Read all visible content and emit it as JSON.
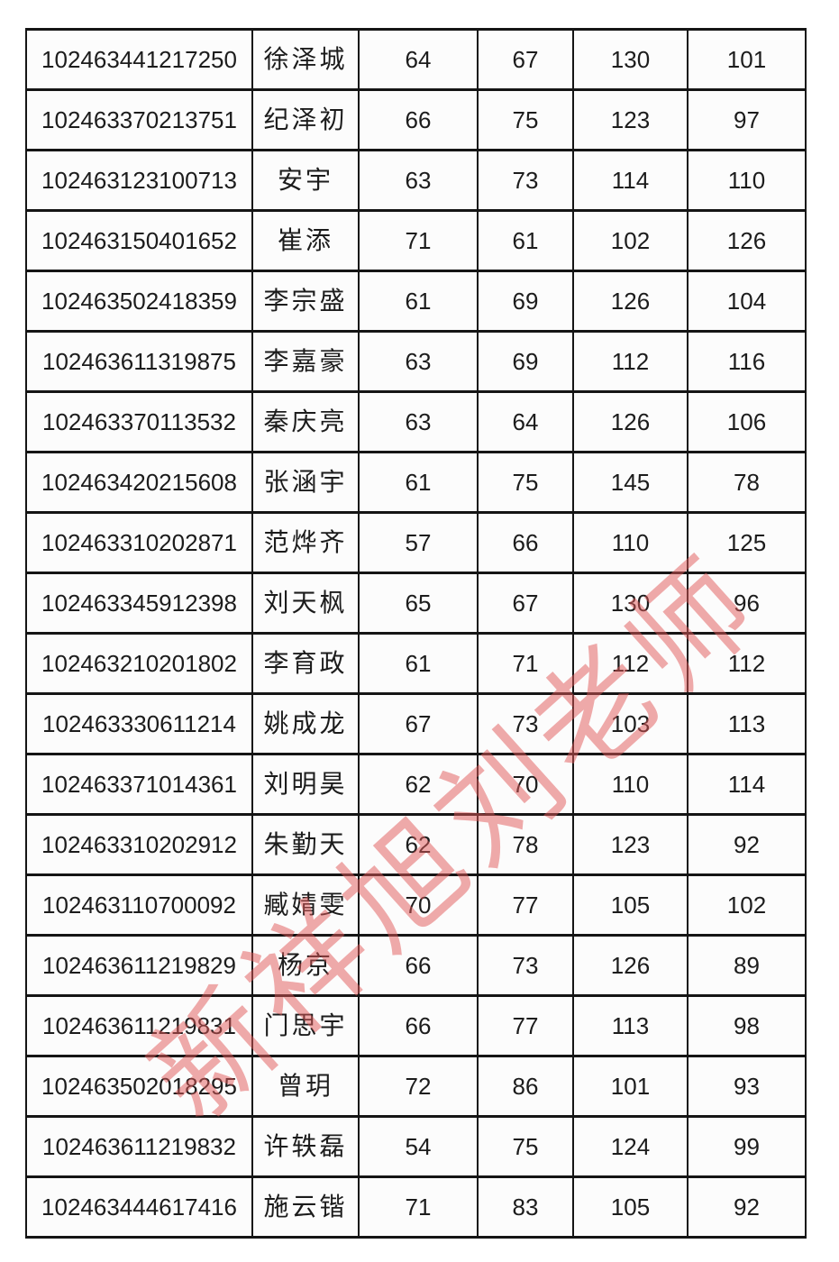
{
  "page": {
    "background": "#ffffff",
    "border_color": "#151515",
    "text_color": "#1c1c1c"
  },
  "watermark": {
    "text": "新祥旭刘老师",
    "color": "#e25959"
  },
  "table": {
    "rows": [
      [
        "102463441217250",
        "徐泽城",
        "64",
        "67",
        "130",
        "101"
      ],
      [
        "102463370213751",
        "纪泽初",
        "66",
        "75",
        "123",
        "97"
      ],
      [
        "102463123100713",
        "安宇",
        "63",
        "73",
        "114",
        "110"
      ],
      [
        "102463150401652",
        "崔添",
        "71",
        "61",
        "102",
        "126"
      ],
      [
        "102463502418359",
        "李宗盛",
        "61",
        "69",
        "126",
        "104"
      ],
      [
        "102463611319875",
        "李嘉豪",
        "63",
        "69",
        "112",
        "116"
      ],
      [
        "102463370113532",
        "秦庆亮",
        "63",
        "64",
        "126",
        "106"
      ],
      [
        "102463420215608",
        "张涵宇",
        "61",
        "75",
        "145",
        "78"
      ],
      [
        "102463310202871",
        "范烨齐",
        "57",
        "66",
        "110",
        "125"
      ],
      [
        "102463345912398",
        "刘天枫",
        "65",
        "67",
        "130",
        "96"
      ],
      [
        "102463210201802",
        "李育政",
        "61",
        "71",
        "112",
        "112"
      ],
      [
        "102463330611214",
        "姚成龙",
        "67",
        "73",
        "103",
        "113"
      ],
      [
        "102463371014361",
        "刘明昊",
        "62",
        "70",
        "110",
        "114"
      ],
      [
        "102463310202912",
        "朱勤天",
        "62",
        "78",
        "123",
        "92"
      ],
      [
        "102463110700092",
        "臧婧雯",
        "70",
        "77",
        "105",
        "102"
      ],
      [
        "102463611219829",
        "杨京",
        "66",
        "73",
        "126",
        "89"
      ],
      [
        "102463611219831",
        "门思宇",
        "66",
        "77",
        "113",
        "98"
      ],
      [
        "102463502018295",
        "曾玥",
        "72",
        "86",
        "101",
        "93"
      ],
      [
        "102463611219832",
        "许轶磊",
        "54",
        "75",
        "124",
        "99"
      ],
      [
        "102463444617416",
        "施云锴",
        "71",
        "83",
        "105",
        "92"
      ]
    ]
  }
}
